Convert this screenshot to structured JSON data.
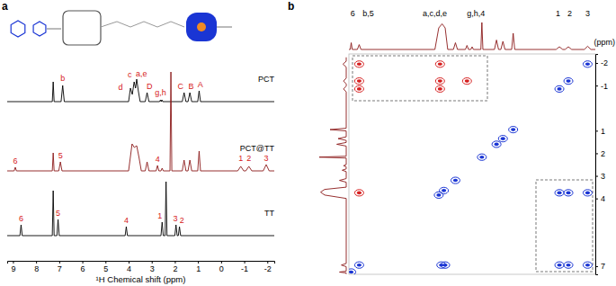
{
  "chart_data": [
    {
      "type": "nmr_stack",
      "title": "a",
      "x_label": "¹H Chemical shift (ppm)",
      "xlim": [
        9.25,
        -2.3
      ],
      "xticks": [
        9,
        8,
        7,
        6,
        5,
        4,
        3,
        2,
        1,
        0,
        -1,
        -2
      ],
      "tick_labels": "x",
      "series": [
        {
          "name": "PCT",
          "color": "#000000",
          "x": [
            9.25,
            7.3,
            7.26,
            7.22,
            6.92,
            6.85,
            6.78,
            4.0,
            3.92,
            3.84,
            3.76,
            3.7,
            3.65,
            3.58,
            3.5,
            3.28,
            3.2,
            3.12,
            2.66,
            2.62,
            2.59,
            2.56,
            2.52,
            1.68,
            1.6,
            1.52,
            1.43,
            1.35,
            1.27,
            1.01,
            0.95,
            0.89,
            -2.3
          ],
          "values": [
            0,
            0,
            0.22,
            0,
            0,
            0.18,
            0,
            0,
            0.15,
            0.08,
            0.22,
            0.15,
            0.25,
            0.12,
            0,
            0,
            0.1,
            0,
            0,
            0.02,
            0,
            0.02,
            0,
            0,
            0.1,
            0,
            0,
            0.1,
            0,
            0,
            0.12,
            0,
            0
          ]
        },
        {
          "name": "PCT@TT",
          "color": "#8b1a1a",
          "x": [
            9.25,
            8.95,
            8.9,
            8.85,
            7.3,
            7.26,
            7.22,
            7.02,
            6.95,
            6.88,
            4.0,
            3.85,
            3.75,
            3.65,
            3.55,
            3.45,
            3.28,
            3.2,
            3.12,
            2.81,
            2.75,
            2.69,
            2.6,
            2.55,
            2.5,
            2.21,
            2.17,
            2.13,
            1.68,
            1.6,
            1.52,
            1.43,
            1.35,
            1.27,
            1.01,
            0.95,
            0.89,
            -0.72,
            -0.85,
            -0.98,
            -1.07,
            -1.2,
            -1.33,
            -1.82,
            -1.95,
            -2.08,
            -2.3
          ],
          "values": [
            0,
            0,
            0.04,
            0,
            0,
            0.2,
            0,
            0,
            0.1,
            0,
            0,
            0.3,
            0.26,
            0.28,
            0.15,
            0,
            0,
            0.1,
            0,
            0,
            0.06,
            0,
            0,
            0.03,
            0,
            0,
            1.1,
            0,
            0,
            0.12,
            0,
            0,
            0.12,
            0,
            0,
            0.22,
            0,
            0,
            0.05,
            0,
            0,
            0.05,
            0,
            0,
            0.07,
            0,
            0
          ]
        },
        {
          "name": "TT",
          "color": "#000000",
          "x": [
            9.25,
            8.7,
            8.65,
            8.6,
            7.3,
            7.26,
            7.22,
            7.1,
            7.05,
            7.0,
            4.15,
            4.1,
            4.05,
            2.6,
            2.55,
            2.5,
            2.42,
            2.38,
            2.34,
            2.0,
            1.95,
            1.9,
            1.85,
            1.8,
            1.75,
            -2.3
          ],
          "values": [
            0,
            0,
            0.12,
            0,
            0,
            0.5,
            0,
            0,
            0.18,
            0,
            0,
            0.1,
            0,
            0,
            0.15,
            0,
            0,
            0.6,
            0,
            0,
            0.12,
            0,
            0,
            0.1,
            0,
            0
          ]
        }
      ],
      "annotations": [
        {
          "text": "b",
          "series": 0,
          "x": 6.85,
          "y": 0.22
        },
        {
          "text": "d",
          "series": 0,
          "x": 4.35,
          "y": 0.12
        },
        {
          "text": "c",
          "series": 0,
          "x": 3.95,
          "y": 0.26
        },
        {
          "text": "a,e",
          "series": 0,
          "x": 3.45,
          "y": 0.27
        },
        {
          "text": "D",
          "series": 0,
          "x": 3.1,
          "y": 0.13
        },
        {
          "text": "g,h",
          "series": 0,
          "x": 2.62,
          "y": 0.06
        },
        {
          "text": "C",
          "series": 0,
          "x": 1.75,
          "y": 0.13
        },
        {
          "text": "B",
          "series": 0,
          "x": 1.3,
          "y": 0.13
        },
        {
          "text": "A",
          "series": 0,
          "x": 0.9,
          "y": 0.15
        },
        {
          "text": "6",
          "series": 1,
          "x": 8.9,
          "y": 0.07
        },
        {
          "text": "5",
          "series": 1,
          "x": 6.95,
          "y": 0.13
        },
        {
          "text": "4",
          "series": 1,
          "x": 2.75,
          "y": 0.09
        },
        {
          "text": "1",
          "series": 1,
          "x": -0.85,
          "y": 0.1
        },
        {
          "text": "2",
          "series": 1,
          "x": -1.2,
          "y": 0.1
        },
        {
          "text": "3",
          "series": 1,
          "x": -1.95,
          "y": 0.1
        },
        {
          "text": "6",
          "series": 2,
          "x": 8.65,
          "y": 0.15
        },
        {
          "text": "5",
          "series": 2,
          "x": 7.05,
          "y": 0.21
        },
        {
          "text": "4",
          "series": 2,
          "x": 4.1,
          "y": 0.13
        },
        {
          "text": "1",
          "series": 2,
          "x": 2.65,
          "y": 0.18
        },
        {
          "text": "3",
          "series": 2,
          "x": 1.98,
          "y": 0.15
        },
        {
          "text": "2",
          "series": 2,
          "x": 1.7,
          "y": 0.13
        }
      ]
    },
    {
      "type": "nmr_2d",
      "title": "b",
      "y_label": "(ppm)",
      "xlim": [
        7.35,
        -2.25
      ],
      "ylim": [
        -2.4,
        7.36
      ],
      "yticks": [
        -2,
        -1,
        1,
        2,
        3,
        4,
        7
      ],
      "tick_labels": "y",
      "series": [
        {
          "color": "#8b1a1a",
          "x": [
            7.35,
            7.3,
            7.26,
            7.22,
            7.02,
            6.95,
            6.88,
            4.0,
            3.85,
            3.72,
            3.6,
            3.5,
            3.28,
            3.2,
            3.12,
            2.81,
            2.75,
            2.69,
            2.6,
            2.55,
            2.5,
            2.21,
            2.17,
            2.13,
            1.68,
            1.6,
            1.52,
            1.43,
            1.35,
            1.27,
            1.01,
            0.95,
            0.89,
            -0.72,
            -0.85,
            -0.98,
            -1.07,
            -1.2,
            -1.33,
            -1.82,
            -1.95,
            -2.08,
            -2.25
          ],
          "values": [
            0,
            0,
            0.25,
            0,
            0,
            0.18,
            0,
            0,
            0.8,
            0.95,
            0.8,
            0,
            0,
            0.25,
            0,
            0,
            0.15,
            0,
            0,
            0.1,
            0,
            0,
            1.0,
            0,
            0,
            0.35,
            0,
            0,
            0.3,
            0,
            0,
            0.6,
            0,
            0,
            0.1,
            0,
            0,
            0.1,
            0,
            0,
            0.12,
            0,
            0
          ]
        }
      ],
      "cross_peaks": {
        "x": [
          7.26,
          6.95,
          3.85,
          3.65,
          3.2,
          2.17,
          1.6,
          1.35,
          0.95,
          -0.85,
          -1.2,
          -1.95,
          6.95,
          6.95,
          6.95,
          3.8,
          3.8,
          3.8,
          2.75,
          6.95,
          3.75,
          3.6,
          -0.85,
          -1.2,
          -1.95,
          -0.85,
          -1.2,
          -1.95
        ],
        "y": [
          7.26,
          6.95,
          3.85,
          3.65,
          3.2,
          2.17,
          1.6,
          1.35,
          0.95,
          -0.85,
          -1.2,
          -1.95,
          -1.95,
          -1.2,
          -0.85,
          -1.95,
          -1.2,
          -0.85,
          -1.2,
          3.75,
          6.95,
          6.95,
          3.75,
          3.75,
          3.75,
          6.95,
          6.95,
          6.95
        ],
        "colors": [
          "#1a35d4",
          "#1a35d4",
          "#1a35d4",
          "#1a35d4",
          "#1a35d4",
          "#1a35d4",
          "#1a35d4",
          "#1a35d4",
          "#1a35d4",
          "#1a35d4",
          "#1a35d4",
          "#1a35d4",
          "#d62020",
          "#d62020",
          "#d62020",
          "#d62020",
          "#d62020",
          "#d62020",
          "#d62020",
          "#d62020",
          "#1a35d4",
          "#1a35d4",
          "#1a35d4",
          "#1a35d4",
          "#1a35d4",
          "#1a35d4",
          "#1a35d4",
          "#1a35d4"
        ]
      },
      "annotations": [
        {
          "text": "6",
          "x": 7.2,
          "y": 1.25
        },
        {
          "text": "b,5",
          "x": 6.6,
          "y": 1.25
        },
        {
          "text": "a,c,d,e",
          "x": 4.0,
          "y": 1.25
        },
        {
          "text": "g,h,4",
          "x": 2.4,
          "y": 1.25
        },
        {
          "text": "1",
          "x": -0.8,
          "y": 1.25
        },
        {
          "text": "2",
          "x": -1.25,
          "y": 1.25
        },
        {
          "text": "3",
          "x": -1.95,
          "y": 1.25
        }
      ]
    }
  ]
}
